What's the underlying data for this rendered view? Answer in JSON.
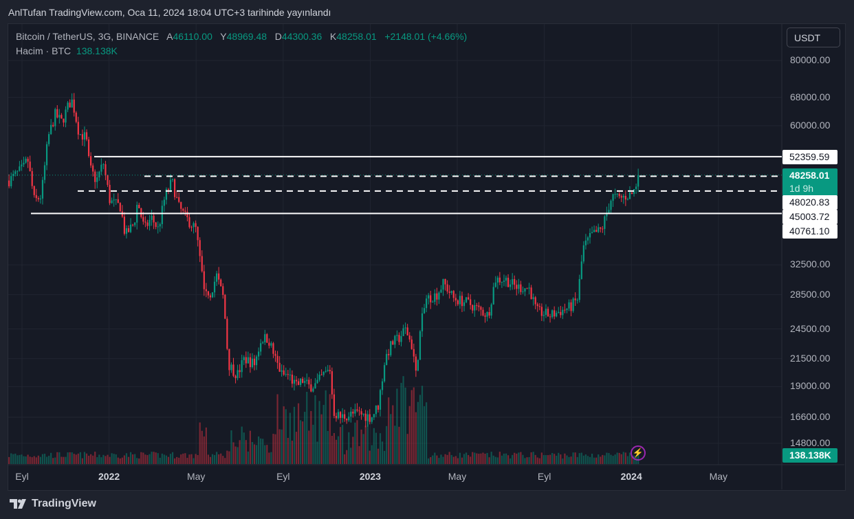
{
  "header": {
    "title": "AnlTufan TradingView.com, Oca 11, 2024 18:04 UTC+3 tarihinde yayınlandı"
  },
  "legend": {
    "symbol": "Bitcoin / TetherUS, 3G, BINANCE",
    "open_label": "A",
    "open": "46110.00",
    "high_label": "Y",
    "high": "48969.48",
    "low_label": "D",
    "low": "44300.36",
    "close_label": "K",
    "close": "48258.01",
    "change": "+2148.01 (+4.66%)",
    "volume_label": "Hacim · BTC",
    "volume": "138.138K"
  },
  "currency_button": "USDT",
  "price_axis": [
    "80000.00",
    "68000.00",
    "60000.00",
    "32500.00",
    "28500.00",
    "24500.00",
    "21500.00",
    "19000.00",
    "16600.00",
    "14800.00"
  ],
  "levels": [
    {
      "price": "52359.59",
      "style": "solid"
    },
    {
      "price": "48020.83",
      "style": "dashed"
    },
    {
      "price": "45003.72",
      "style": "dashed"
    },
    {
      "price": "40761.10",
      "style": "solid"
    }
  ],
  "current_price": {
    "value": "48258.01",
    "countdown": "1d 9h"
  },
  "volume_badge": "138.138K",
  "time_axis": [
    {
      "label": "Eyl",
      "m": 0,
      "bold": false
    },
    {
      "label": "2022",
      "m": 4,
      "bold": true
    },
    {
      "label": "May",
      "m": 8,
      "bold": false
    },
    {
      "label": "Eyl",
      "m": 12,
      "bold": false
    },
    {
      "label": "2023",
      "m": 16,
      "bold": true
    },
    {
      "label": "May",
      "m": 20,
      "bold": false
    },
    {
      "label": "Eyl",
      "m": 24,
      "bold": false
    },
    {
      "label": "2024",
      "m": 28,
      "bold": true
    },
    {
      "label": "May",
      "m": 32,
      "bold": false
    }
  ],
  "footer": {
    "brand": "TradingView"
  },
  "colors": {
    "up": "#089981",
    "down": "#f23645",
    "bg": "#161a25"
  },
  "chart_data": {
    "type": "candlestick",
    "title": "Bitcoin / TetherUS, 3G, BINANCE",
    "x_unit": "months since 2021-09-01",
    "y_scale": "log",
    "ylim": [
      14000,
      90000
    ],
    "approx_close_path": [
      [
        -0.63,
        47000
      ],
      [
        0.09,
        50000
      ],
      [
        0.25,
        52000
      ],
      [
        0.57,
        43000
      ],
      [
        0.88,
        44000
      ],
      [
        1.2,
        57000
      ],
      [
        1.52,
        63000
      ],
      [
        1.83,
        61000
      ],
      [
        2.15,
        66000
      ],
      [
        2.31,
        67000
      ],
      [
        2.62,
        58000
      ],
      [
        2.94,
        57000
      ],
      [
        3.1,
        50000
      ],
      [
        3.41,
        47000
      ],
      [
        3.73,
        51000
      ],
      [
        4.04,
        43000
      ],
      [
        4.52,
        42000
      ],
      [
        4.74,
        37000
      ],
      [
        5.15,
        39000
      ],
      [
        5.31,
        43000
      ],
      [
        5.62,
        38000
      ],
      [
        5.94,
        40000
      ],
      [
        6.26,
        38000
      ],
      [
        6.57,
        44000
      ],
      [
        6.89,
        47000
      ],
      [
        7.2,
        42000
      ],
      [
        7.52,
        40000
      ],
      [
        7.99,
        38000
      ],
      [
        8.31,
        30000
      ],
      [
        8.63,
        28500
      ],
      [
        8.94,
        31000
      ],
      [
        9.26,
        28000
      ],
      [
        9.48,
        21000
      ],
      [
        9.89,
        20000
      ],
      [
        10.21,
        21500
      ],
      [
        10.68,
        21000
      ],
      [
        11.0,
        23500
      ],
      [
        11.31,
        23500
      ],
      [
        11.63,
        21500
      ],
      [
        11.94,
        20000
      ],
      [
        12.26,
        20000
      ],
      [
        12.58,
        19000
      ],
      [
        12.89,
        19500
      ],
      [
        13.21,
        19000
      ],
      [
        13.52,
        19200
      ],
      [
        13.84,
        20000
      ],
      [
        14.15,
        20500
      ],
      [
        14.31,
        17000
      ],
      [
        14.63,
        16600
      ],
      [
        15.1,
        16800
      ],
      [
        15.42,
        16900
      ],
      [
        16.05,
        16600
      ],
      [
        16.37,
        17500
      ],
      [
        16.68,
        21500
      ],
      [
        17.0,
        23000
      ],
      [
        17.31,
        23500
      ],
      [
        17.63,
        24500
      ],
      [
        17.95,
        22500
      ],
      [
        18.1,
        20000
      ],
      [
        18.33,
        25000
      ],
      [
        18.58,
        28000
      ],
      [
        19.05,
        28500
      ],
      [
        19.37,
        30000
      ],
      [
        19.84,
        28000
      ],
      [
        20.47,
        27500
      ],
      [
        21.11,
        26500
      ],
      [
        21.42,
        26000
      ],
      [
        21.74,
        30500
      ],
      [
        22.21,
        30500
      ],
      [
        22.69,
        29500
      ],
      [
        23.32,
        29300
      ],
      [
        23.63,
        26500
      ],
      [
        24.27,
        26000
      ],
      [
        24.74,
        26500
      ],
      [
        25.21,
        27000
      ],
      [
        25.53,
        28000
      ],
      [
        25.78,
        35000
      ],
      [
        26.16,
        37000
      ],
      [
        26.64,
        38000
      ],
      [
        26.95,
        42000
      ],
      [
        27.11,
        44000
      ],
      [
        27.42,
        43500
      ],
      [
        27.74,
        44000
      ],
      [
        28.06,
        44500
      ],
      [
        28.37,
        48258.01
      ]
    ]
  }
}
